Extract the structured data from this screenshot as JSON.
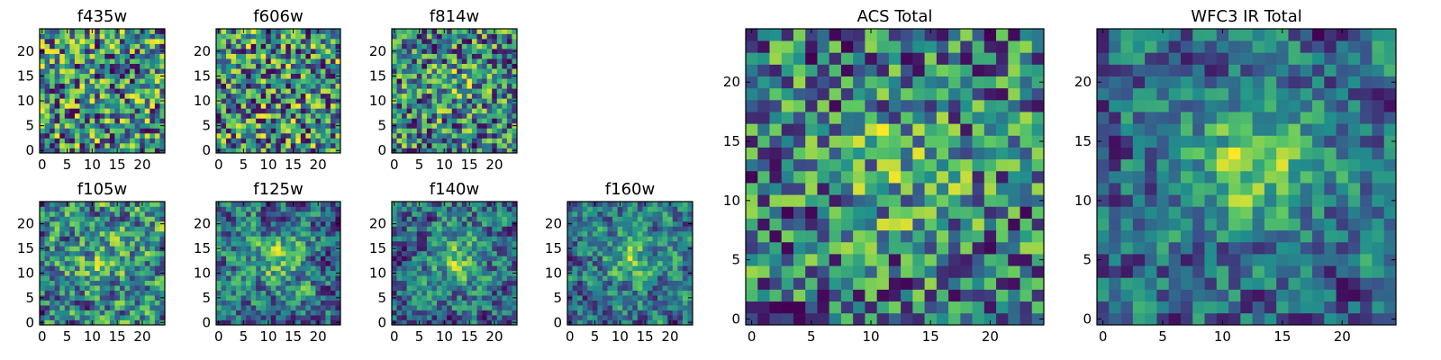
{
  "chart_data": [
    {
      "type": "heatmap",
      "title": "f435w",
      "xticks": [
        "0",
        "5",
        "10",
        "15",
        "20"
      ],
      "yticks": [
        "0",
        "5",
        "10",
        "15",
        "20"
      ],
      "grid_size": [
        25,
        25
      ],
      "xlim": [
        -0.5,
        24.5
      ],
      "ylim": [
        -0.5,
        24.5
      ],
      "colormap": "viridis",
      "seed": 11,
      "blob": 0.0
    },
    {
      "type": "heatmap",
      "title": "f606w",
      "xticks": [
        "0",
        "5",
        "10",
        "15",
        "20"
      ],
      "yticks": [
        "0",
        "5",
        "10",
        "15",
        "20"
      ],
      "grid_size": [
        25,
        25
      ],
      "xlim": [
        -0.5,
        24.5
      ],
      "ylim": [
        -0.5,
        24.5
      ],
      "colormap": "viridis",
      "seed": 23,
      "blob": 0.0
    },
    {
      "type": "heatmap",
      "title": "f814w",
      "xticks": [
        "0",
        "5",
        "10",
        "15",
        "20"
      ],
      "yticks": [
        "0",
        "5",
        "10",
        "15",
        "20"
      ],
      "grid_size": [
        25,
        25
      ],
      "xlim": [
        -0.5,
        24.5
      ],
      "ylim": [
        -0.5,
        24.5
      ],
      "colormap": "viridis",
      "seed": 37,
      "blob": 0.15
    },
    {
      "type": "heatmap",
      "title": "f105w",
      "xticks": [
        "0",
        "5",
        "10",
        "15",
        "20"
      ],
      "yticks": [
        "0",
        "5",
        "10",
        "15",
        "20"
      ],
      "grid_size": [
        25,
        25
      ],
      "xlim": [
        -0.5,
        24.5
      ],
      "ylim": [
        -0.5,
        24.5
      ],
      "colormap": "viridis",
      "seed": 41,
      "blob": 0.2,
      "smooth": true
    },
    {
      "type": "heatmap",
      "title": "f125w",
      "xticks": [
        "0",
        "5",
        "10",
        "15",
        "20"
      ],
      "yticks": [
        "0",
        "5",
        "10",
        "15",
        "20"
      ],
      "grid_size": [
        25,
        25
      ],
      "xlim": [
        -0.5,
        24.5
      ],
      "ylim": [
        -0.5,
        24.5
      ],
      "colormap": "viridis",
      "seed": 53,
      "blob": 0.3,
      "smooth": true
    },
    {
      "type": "heatmap",
      "title": "f140w",
      "xticks": [
        "0",
        "5",
        "10",
        "15",
        "20"
      ],
      "yticks": [
        "0",
        "5",
        "10",
        "15",
        "20"
      ],
      "grid_size": [
        25,
        25
      ],
      "xlim": [
        -0.5,
        24.5
      ],
      "ylim": [
        -0.5,
        24.5
      ],
      "colormap": "viridis",
      "seed": 67,
      "blob": 0.35,
      "smooth": true
    },
    {
      "type": "heatmap",
      "title": "f160w",
      "xticks": [
        "0",
        "5",
        "10",
        "15",
        "20"
      ],
      "yticks": [
        "0",
        "5",
        "10",
        "15",
        "20"
      ],
      "grid_size": [
        25,
        25
      ],
      "xlim": [
        -0.5,
        24.5
      ],
      "ylim": [
        -0.5,
        24.5
      ],
      "colormap": "viridis",
      "seed": 79,
      "blob": 0.35,
      "smooth": true
    },
    {
      "type": "heatmap",
      "title": "ACS Total",
      "xticks": [
        "0",
        "5",
        "10",
        "15",
        "20"
      ],
      "yticks": [
        "0",
        "5",
        "10",
        "15",
        "20"
      ],
      "grid_size": [
        25,
        25
      ],
      "xlim": [
        -0.5,
        24.5
      ],
      "ylim": [
        -0.5,
        24.5
      ],
      "colormap": "viridis",
      "seed": 97,
      "blob": 0.25
    },
    {
      "type": "heatmap",
      "title": "WFC3 IR Total",
      "xticks": [
        "0",
        "5",
        "10",
        "15",
        "20"
      ],
      "yticks": [
        "0",
        "5",
        "10",
        "15",
        "20"
      ],
      "grid_size": [
        25,
        25
      ],
      "xlim": [
        -0.5,
        24.5
      ],
      "ylim": [
        -0.5,
        24.5
      ],
      "colormap": "viridis",
      "seed": 113,
      "blob": 0.45,
      "smooth": true
    }
  ],
  "colors": {
    "viridis_stops": [
      "#440154",
      "#3b528b",
      "#21918c",
      "#5ec962",
      "#fde725"
    ],
    "frame": "#000000",
    "background": "#ffffff"
  }
}
